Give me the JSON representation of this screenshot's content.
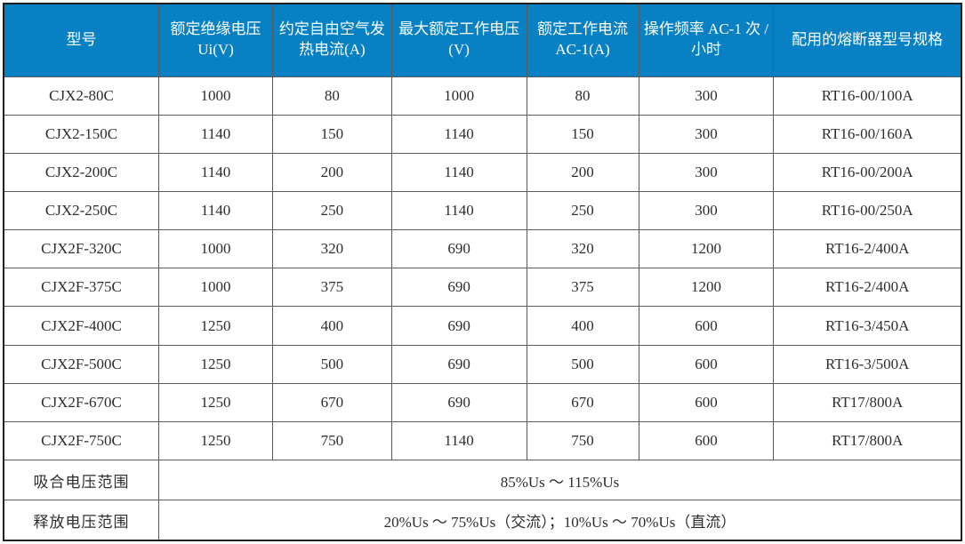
{
  "table": {
    "column_keys": [
      "model",
      "rated-insulation-voltage",
      "conventional-free-air-thermal-current",
      "max-rated-working-voltage",
      "rated-working-current-ac1",
      "operating-frequency",
      "matching-fuse-model"
    ],
    "headers": [
      "型号",
      "额定绝缘电压 Ui(V)",
      "约定自由空气发热电流(A)",
      "最大额定工作电压(V)",
      "额定工作电流 AC-1(A)",
      "操作频率 AC-1 次 / 小时",
      "配用的熔断器型号规格"
    ],
    "rows": [
      [
        "CJX2-80C",
        "1000",
        "80",
        "1000",
        "80",
        "300",
        "RT16-00/100A"
      ],
      [
        "CJX2-150C",
        "1140",
        "150",
        "1140",
        "150",
        "300",
        "RT16-00/160A"
      ],
      [
        "CJX2-200C",
        "1140",
        "200",
        "1140",
        "200",
        "300",
        "RT16-00/200A"
      ],
      [
        "CJX2-250C",
        "1140",
        "250",
        "1140",
        "250",
        "300",
        "RT16-00/250A"
      ],
      [
        "CJX2F-320C",
        "1000",
        "320",
        "690",
        "320",
        "1200",
        "RT16-2/400A"
      ],
      [
        "CJX2F-375C",
        "1000",
        "375",
        "690",
        "375",
        "1200",
        "RT16-2/400A"
      ],
      [
        "CJX2F-400C",
        "1250",
        "400",
        "690",
        "400",
        "600",
        "RT16-3/450A"
      ],
      [
        "CJX2F-500C",
        "1250",
        "500",
        "690",
        "500",
        "600",
        "RT16-3/500A"
      ],
      [
        "CJX2F-670C",
        "1250",
        "670",
        "690",
        "670",
        "600",
        "RT17/800A"
      ],
      [
        "CJX2F-750C",
        "1250",
        "750",
        "1140",
        "750",
        "600",
        "RT17/800A"
      ]
    ],
    "footer_rows": [
      {
        "label": "吸合电压范围",
        "value": "85%Us ～ 115%Us"
      },
      {
        "label": "释放电压范围",
        "value": "20%Us ～ 75%Us（交流）；10%Us ～ 70%Us（直流）"
      }
    ]
  },
  "colors": {
    "header_bg": "#0881c4",
    "header_text": "#ffffff",
    "body_text": "#2d2d2d",
    "grid_line": "#5a5a5a",
    "outer_border": "#1f1f1f",
    "row_bg": "#ffffff"
  }
}
